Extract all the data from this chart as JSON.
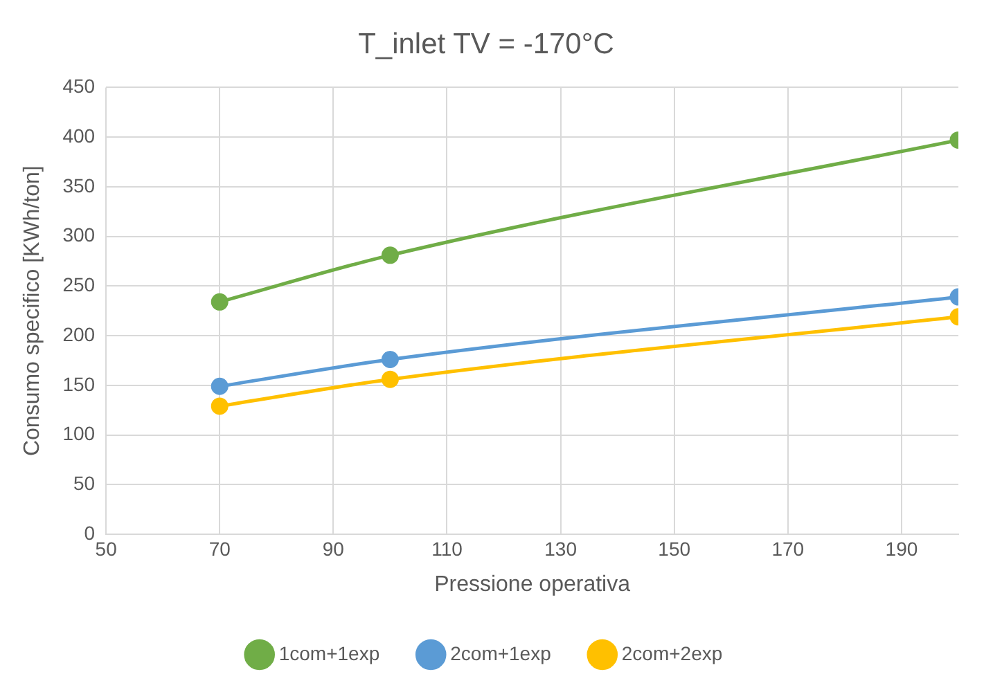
{
  "chart_data": {
    "type": "line",
    "title": "T_inlet TV = -170°C",
    "xlabel": "Pressione operativa",
    "ylabel": "Consumo specifico [KWh/ton]",
    "x": [
      70,
      100,
      200
    ],
    "series": [
      {
        "name": "1com+1exp",
        "color": "#70ad47",
        "values": [
          234,
          281,
          397
        ]
      },
      {
        "name": "2com+1exp",
        "color": "#5b9bd5",
        "values": [
          149,
          176,
          239
        ]
      },
      {
        "name": "2com+2exp",
        "color": "#ffc000",
        "values": [
          129,
          156,
          219
        ]
      }
    ],
    "xlim": [
      50,
      200
    ],
    "xticks": [
      50,
      70,
      90,
      110,
      130,
      150,
      170,
      190
    ],
    "ylim": [
      0,
      450
    ],
    "yticks": [
      0,
      50,
      100,
      150,
      200,
      250,
      300,
      350,
      400,
      450
    ],
    "grid": true,
    "legend": "bottom",
    "marker": "circle",
    "line_style": "solid"
  }
}
